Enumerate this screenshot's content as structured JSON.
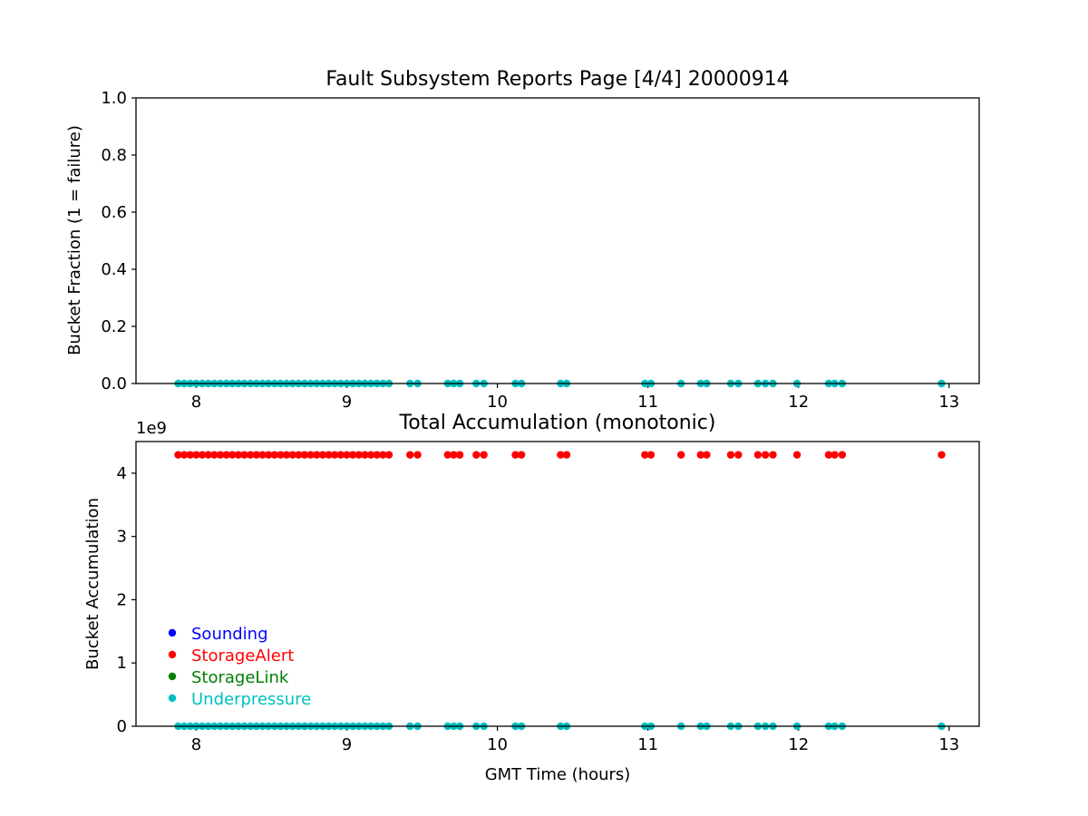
{
  "chart_data": [
    {
      "type": "scatter",
      "title": "Fault Subsystem Reports Page [4/4] 20000914",
      "xlabel": "",
      "ylabel": "Bucket Fraction (1 = failure)",
      "xlim": [
        7.6,
        13.2
      ],
      "ylim": [
        0.0,
        1.0
      ],
      "xticks": [
        "8",
        "9",
        "10",
        "11",
        "12",
        "13"
      ],
      "yticks": [
        "0.0",
        "0.2",
        "0.4",
        "0.6",
        "0.8",
        "1.0"
      ],
      "grid": false,
      "series": [
        {
          "name": "Underpressure",
          "color": "#00bfbf",
          "x": [
            7.88,
            7.92,
            7.96,
            8.0,
            8.04,
            8.08,
            8.12,
            8.16,
            8.2,
            8.24,
            8.28,
            8.32,
            8.36,
            8.4,
            8.44,
            8.48,
            8.52,
            8.56,
            8.6,
            8.64,
            8.68,
            8.72,
            8.76,
            8.8,
            8.84,
            8.88,
            8.92,
            8.96,
            9.0,
            9.04,
            9.08,
            9.12,
            9.16,
            9.2,
            9.24,
            9.28,
            9.42,
            9.47,
            9.67,
            9.71,
            9.75,
            9.86,
            9.91,
            10.12,
            10.16,
            10.42,
            10.46,
            10.98,
            11.02,
            11.22,
            11.35,
            11.39,
            11.55,
            11.6,
            11.73,
            11.78,
            11.83,
            11.99,
            12.2,
            12.24,
            12.29,
            12.95
          ],
          "y": [
            0,
            0,
            0,
            0,
            0,
            0,
            0,
            0,
            0,
            0,
            0,
            0,
            0,
            0,
            0,
            0,
            0,
            0,
            0,
            0,
            0,
            0,
            0,
            0,
            0,
            0,
            0,
            0,
            0,
            0,
            0,
            0,
            0,
            0,
            0,
            0,
            0,
            0,
            0,
            0,
            0,
            0,
            0,
            0,
            0,
            0,
            0,
            0,
            0,
            0,
            0,
            0,
            0,
            0,
            0,
            0,
            0,
            0,
            0,
            0,
            0,
            0
          ]
        }
      ]
    },
    {
      "type": "scatter",
      "title": "Total Accumulation (monotonic)",
      "xlabel": "GMT Time (hours)",
      "ylabel": "Bucket Accumulation",
      "offset_text": "1e9",
      "xlim": [
        7.6,
        13.2
      ],
      "ylim": [
        0,
        4.5
      ],
      "y_scale": 1000000000,
      "xticks": [
        "8",
        "9",
        "10",
        "11",
        "12",
        "13"
      ],
      "yticks": [
        "0",
        "1",
        "2",
        "3",
        "4"
      ],
      "grid": false,
      "legend_position": "lower-left",
      "legend": [
        {
          "name": "Sounding",
          "color": "#0000ff"
        },
        {
          "name": "StorageAlert",
          "color": "#ff0000"
        },
        {
          "name": "StorageLink",
          "color": "#008000"
        },
        {
          "name": "Underpressure",
          "color": "#00bfbf"
        }
      ],
      "series": [
        {
          "name": "StorageAlert",
          "color": "#ff0000",
          "x": [
            7.88,
            7.92,
            7.96,
            8.0,
            8.04,
            8.08,
            8.12,
            8.16,
            8.2,
            8.24,
            8.28,
            8.32,
            8.36,
            8.4,
            8.44,
            8.48,
            8.52,
            8.56,
            8.6,
            8.64,
            8.68,
            8.72,
            8.76,
            8.8,
            8.84,
            8.88,
            8.92,
            8.96,
            9.0,
            9.04,
            9.08,
            9.12,
            9.16,
            9.2,
            9.24,
            9.28,
            9.42,
            9.47,
            9.67,
            9.71,
            9.75,
            9.86,
            9.91,
            10.12,
            10.16,
            10.42,
            10.46,
            10.98,
            11.02,
            11.22,
            11.35,
            11.39,
            11.55,
            11.6,
            11.73,
            11.78,
            11.83,
            11.99,
            12.2,
            12.24,
            12.29,
            12.95
          ],
          "y": [
            4.29,
            4.29,
            4.29,
            4.29,
            4.29,
            4.29,
            4.29,
            4.29,
            4.29,
            4.29,
            4.29,
            4.29,
            4.29,
            4.29,
            4.29,
            4.29,
            4.29,
            4.29,
            4.29,
            4.29,
            4.29,
            4.29,
            4.29,
            4.29,
            4.29,
            4.29,
            4.29,
            4.29,
            4.29,
            4.29,
            4.29,
            4.29,
            4.29,
            4.29,
            4.29,
            4.29,
            4.29,
            4.29,
            4.29,
            4.29,
            4.29,
            4.29,
            4.29,
            4.29,
            4.29,
            4.29,
            4.29,
            4.29,
            4.29,
            4.29,
            4.29,
            4.29,
            4.29,
            4.29,
            4.29,
            4.29,
            4.29,
            4.29,
            4.29,
            4.29,
            4.29,
            4.29
          ]
        },
        {
          "name": "Underpressure",
          "color": "#00bfbf",
          "x": [
            7.88,
            7.92,
            7.96,
            8.0,
            8.04,
            8.08,
            8.12,
            8.16,
            8.2,
            8.24,
            8.28,
            8.32,
            8.36,
            8.4,
            8.44,
            8.48,
            8.52,
            8.56,
            8.6,
            8.64,
            8.68,
            8.72,
            8.76,
            8.8,
            8.84,
            8.88,
            8.92,
            8.96,
            9.0,
            9.04,
            9.08,
            9.12,
            9.16,
            9.2,
            9.24,
            9.28,
            9.42,
            9.47,
            9.67,
            9.71,
            9.75,
            9.86,
            9.91,
            10.12,
            10.16,
            10.42,
            10.46,
            10.98,
            11.02,
            11.22,
            11.35,
            11.39,
            11.55,
            11.6,
            11.73,
            11.78,
            11.83,
            11.99,
            12.2,
            12.24,
            12.29,
            12.95
          ],
          "y": [
            0,
            0,
            0,
            0,
            0,
            0,
            0,
            0,
            0,
            0,
            0,
            0,
            0,
            0,
            0,
            0,
            0,
            0,
            0,
            0,
            0,
            0,
            0,
            0,
            0,
            0,
            0,
            0,
            0,
            0,
            0,
            0,
            0,
            0,
            0,
            0,
            0,
            0,
            0,
            0,
            0,
            0,
            0,
            0,
            0,
            0,
            0,
            0,
            0,
            0,
            0,
            0,
            0,
            0,
            0,
            0,
            0,
            0,
            0,
            0,
            0,
            0
          ]
        }
      ]
    }
  ]
}
